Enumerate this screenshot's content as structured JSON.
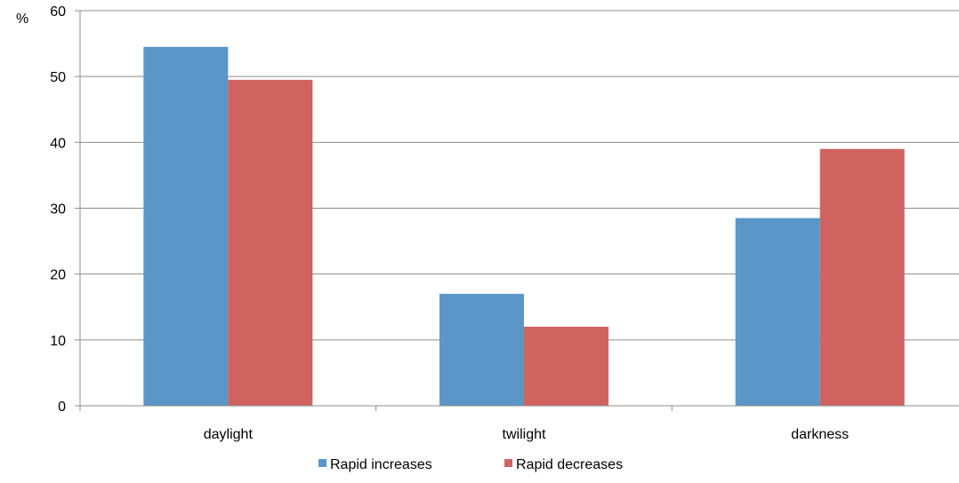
{
  "chart_data": {
    "type": "bar",
    "title": "",
    "xlabel": "",
    "ylabel": "%",
    "categories": [
      "daylight",
      "twilight",
      "darkness"
    ],
    "series": [
      {
        "name": "Rapid increases",
        "values": [
          54.5,
          17,
          28.5
        ],
        "color": "#5b96c8"
      },
      {
        "name": "Rapid decreases",
        "values": [
          49.5,
          12,
          39
        ],
        "color": "#d0625f"
      }
    ],
    "ylim": [
      0,
      60
    ],
    "yticks": [
      0,
      10,
      20,
      30,
      40,
      50,
      60
    ],
    "grid": true,
    "legend_position": "bottom"
  }
}
